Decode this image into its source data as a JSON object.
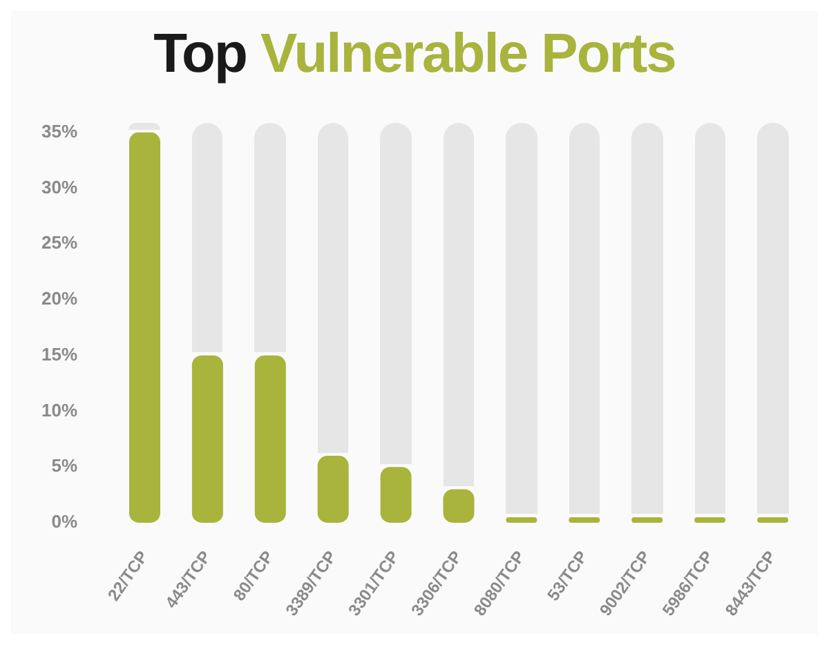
{
  "chart_data": {
    "type": "bar",
    "title": "Top Vulnerable Ports",
    "categories": [
      "22/TCP",
      "443/TCP",
      "80/TCP",
      "3389/TCP",
      "3301/TCP",
      "3306/TCP",
      "8080/TCP",
      "53/TCP",
      "9002/TCP",
      "5986/TCP",
      "8443/TCP"
    ],
    "values": [
      35,
      15,
      15,
      6,
      5,
      3,
      0.5,
      0.5,
      0.5,
      0.5,
      0.5
    ],
    "color": "#a8b43c",
    "ylim": [
      0,
      35
    ],
    "yticks": [
      {
        "value": 0,
        "label": "0%"
      },
      {
        "value": 5,
        "label": "5%"
      },
      {
        "value": 10,
        "label": "10%"
      },
      {
        "value": 15,
        "label": "15%"
      },
      {
        "value": 20,
        "label": "20%"
      },
      {
        "value": 25,
        "label": "25%"
      },
      {
        "value": 30,
        "label": "30%"
      },
      {
        "value": 35,
        "label": "35%"
      }
    ],
    "grid": false,
    "legend": false
  }
}
